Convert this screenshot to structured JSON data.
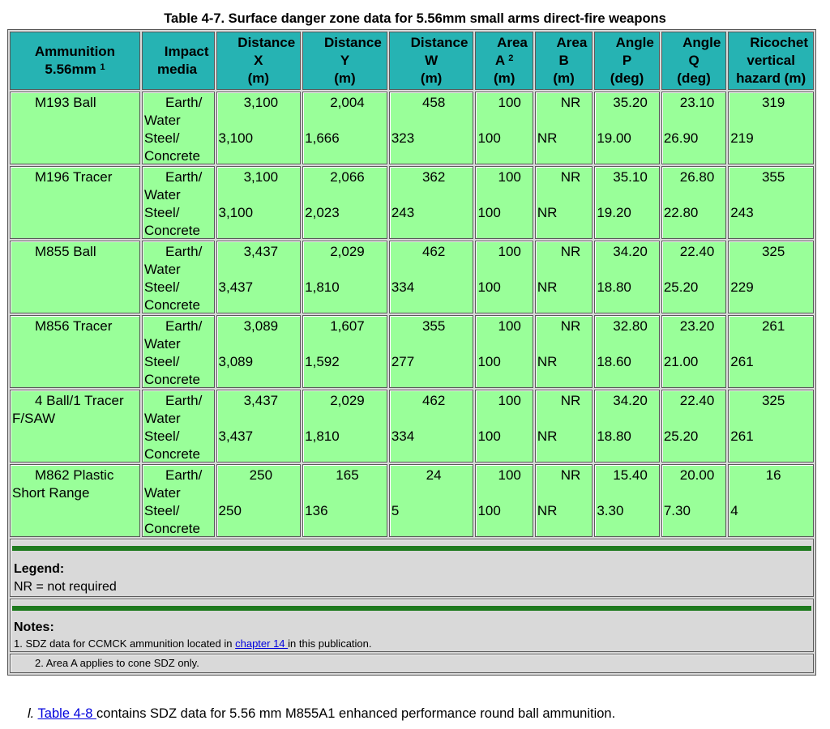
{
  "caption": "Table 4-7. Surface danger zone data for 5.56mm small arms direct-fire weapons",
  "headers": {
    "ammo_line1": "Ammunition",
    "ammo_line2": "5.56mm",
    "ammo_sup": "1",
    "media_line1": "Impact",
    "media_line2": "media",
    "dx": [
      "Distance",
      "X",
      "(m)"
    ],
    "dy": [
      "Distance",
      "Y",
      "(m)"
    ],
    "dw": [
      "Distance",
      "W",
      "(m)"
    ],
    "area_a": [
      "Area",
      "A",
      "2",
      "(m)"
    ],
    "area_b": [
      "Area",
      "B",
      "(m)"
    ],
    "ang_p": [
      "Angle",
      "P",
      "(deg)"
    ],
    "ang_q": [
      "Angle",
      "Q",
      "(deg)"
    ],
    "rico": [
      "Ricochet",
      "vertical",
      "hazard (m)"
    ]
  },
  "media_labels": {
    "earth": "Earth/",
    "water": "Water",
    "steel": "Steel/",
    "concrete": "Concrete"
  },
  "rows": [
    {
      "ammo1": "M193 Ball",
      "ammo2": "",
      "earth": [
        "3,100",
        "2,004",
        "458",
        "100",
        "NR",
        "35.20",
        "23.10",
        "319"
      ],
      "steel": [
        "3,100",
        "1,666",
        "323",
        "100",
        "NR",
        "19.00",
        "26.90",
        "219"
      ]
    },
    {
      "ammo1": "M196 Tracer",
      "ammo2": "",
      "earth": [
        "3,100",
        "2,066",
        "362",
        "100",
        "NR",
        "35.10",
        "26.80",
        "355"
      ],
      "steel": [
        "3,100",
        "2,023",
        "243",
        "100",
        "NR",
        "19.20",
        "22.80",
        "243"
      ]
    },
    {
      "ammo1": "M855 Ball",
      "ammo2": "",
      "earth": [
        "3,437",
        "2,029",
        "462",
        "100",
        "NR",
        "34.20",
        "22.40",
        "325"
      ],
      "steel": [
        "3,437",
        "1,810",
        "334",
        "100",
        "NR",
        "18.80",
        "25.20",
        "229"
      ]
    },
    {
      "ammo1": "M856 Tracer",
      "ammo2": "",
      "earth": [
        "3,089",
        "1,607",
        "355",
        "100",
        "NR",
        "32.80",
        "23.20",
        "261"
      ],
      "steel": [
        "3,089",
        "1,592",
        "277",
        "100",
        "NR",
        "18.60",
        "21.00",
        "261"
      ]
    },
    {
      "ammo1": "4 Ball/1 Tracer",
      "ammo2": "F/SAW",
      "earth": [
        "3,437",
        "2,029",
        "462",
        "100",
        "NR",
        "34.20",
        "22.40",
        "325"
      ],
      "steel": [
        "3,437",
        "1,810",
        "334",
        "100",
        "NR",
        "18.80",
        "25.20",
        "261"
      ]
    },
    {
      "ammo1": "M862 Plastic",
      "ammo2": "Short Range",
      "earth": [
        "250",
        "165",
        "24",
        "100",
        "NR",
        "15.40",
        "20.00",
        "16"
      ],
      "steel": [
        "250",
        "136",
        "5",
        "100",
        "NR",
        "3.30",
        "7.30",
        "4"
      ]
    }
  ],
  "legend": {
    "title": "Legend:",
    "text": "NR = not required"
  },
  "notes": {
    "title": "Notes:",
    "note1_before": "1. SDZ data for CCMCK ammunition located in ",
    "note1_link": "chapter 14 ",
    "note1_after": "in this publication.",
    "note2": "2. Area A applies to cone SDZ only."
  },
  "footer": {
    "enum": "l.",
    "link": "Table 4-8 ",
    "text": "contains SDZ data for 5.56 mm M855A1 enhanced performance round ball ammunition."
  }
}
